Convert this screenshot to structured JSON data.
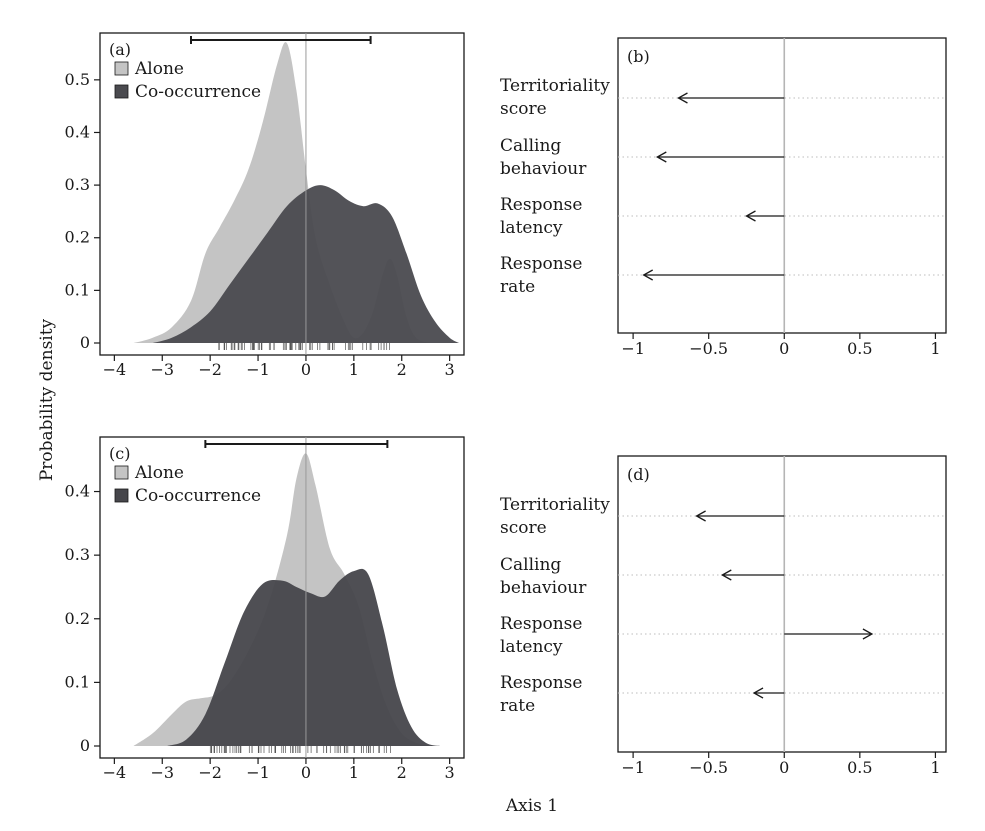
{
  "figure": {
    "ylabel": "Probability density",
    "xlabel": "Axis 1"
  },
  "chart_data": [
    {
      "panel": "(a)",
      "type": "area",
      "xlim": [
        -4.3,
        3.3
      ],
      "ylim": [
        0,
        0.57
      ],
      "xticks": [
        -4,
        -3,
        -2,
        -1,
        0,
        1,
        2,
        3
      ],
      "yticks": [
        0,
        0.1,
        0.2,
        0.3,
        0.4,
        0.5
      ],
      "ytick_labels": [
        "0",
        "0.1",
        "0.2",
        "0.3",
        "0.4",
        "0.5"
      ],
      "legend": [
        "Alone",
        "Co-occurrence"
      ],
      "legend_position": "top-left",
      "interval": [
        -2.4,
        1.35
      ],
      "series": [
        {
          "name": "Alone",
          "color": "#c4c4c4",
          "x": [
            -3.6,
            -3.2,
            -2.8,
            -2.4,
            -2.1,
            -1.8,
            -1.5,
            -1.2,
            -0.9,
            -0.6,
            -0.4,
            -0.2,
            0.0,
            0.2,
            0.5,
            0.8,
            1.0,
            1.2,
            1.4,
            1.6,
            1.75,
            1.9,
            2.1,
            2.3,
            2.6
          ],
          "y": [
            0.0,
            0.01,
            0.03,
            0.08,
            0.17,
            0.22,
            0.27,
            0.33,
            0.42,
            0.53,
            0.57,
            0.48,
            0.33,
            0.2,
            0.11,
            0.04,
            0.01,
            0.02,
            0.06,
            0.13,
            0.16,
            0.13,
            0.05,
            0.01,
            0.0
          ]
        },
        {
          "name": "Co-occurrence",
          "color": "#4a4a4f",
          "x": [
            -3.2,
            -2.8,
            -2.4,
            -2.0,
            -1.6,
            -1.2,
            -0.8,
            -0.4,
            0.0,
            0.3,
            0.6,
            0.9,
            1.2,
            1.5,
            1.8,
            2.1,
            2.4,
            2.7,
            3.0,
            3.2
          ],
          "y": [
            0.0,
            0.01,
            0.03,
            0.06,
            0.11,
            0.16,
            0.21,
            0.26,
            0.29,
            0.3,
            0.29,
            0.27,
            0.26,
            0.265,
            0.24,
            0.17,
            0.09,
            0.04,
            0.01,
            0.0
          ]
        }
      ]
    },
    {
      "panel": "(b)",
      "type": "arrows",
      "xlim": [
        -1.1,
        1.07
      ],
      "xticks": [
        -1,
        -0.5,
        0,
        0.5,
        1
      ],
      "xtick_labels": [
        "−1",
        "−0.5",
        "0",
        "0.5",
        "1"
      ],
      "variables": [
        "Territoriality score",
        "Calling behaviour",
        "Response latency",
        "Response rate"
      ],
      "variable_lines": [
        [
          "Territoriality",
          "score"
        ],
        [
          "Calling",
          "behaviour"
        ],
        [
          "Response",
          "latency"
        ],
        [
          "Response",
          "rate"
        ]
      ],
      "values": [
        -0.7,
        -0.84,
        -0.25,
        -0.93
      ]
    },
    {
      "panel": "(c)",
      "type": "area",
      "xlim": [
        -4.3,
        3.3
      ],
      "ylim": [
        0,
        0.47
      ],
      "xticks": [
        -4,
        -3,
        -2,
        -1,
        0,
        1,
        2,
        3
      ],
      "yticks": [
        0,
        0.1,
        0.2,
        0.3,
        0.4
      ],
      "ytick_labels": [
        "0",
        "0.1",
        "0.2",
        "0.3",
        "0.4"
      ],
      "legend": [
        "Alone",
        "Co-occurrence"
      ],
      "legend_position": "top-left",
      "interval": [
        -2.1,
        1.7
      ],
      "series": [
        {
          "name": "Alone",
          "color": "#c4c4c4",
          "x": [
            -3.6,
            -3.2,
            -2.8,
            -2.5,
            -2.2,
            -1.9,
            -1.6,
            -1.2,
            -0.8,
            -0.4,
            -0.2,
            0.0,
            0.2,
            0.5,
            0.8,
            1.1,
            1.4,
            1.7,
            2.0,
            2.3,
            2.6
          ],
          "y": [
            0.0,
            0.02,
            0.05,
            0.07,
            0.075,
            0.08,
            0.1,
            0.15,
            0.22,
            0.33,
            0.42,
            0.46,
            0.41,
            0.31,
            0.27,
            0.22,
            0.13,
            0.06,
            0.02,
            0.005,
            0.0
          ]
        },
        {
          "name": "Co-occurrence",
          "color": "#46464b",
          "x": [
            -2.9,
            -2.5,
            -2.1,
            -1.7,
            -1.3,
            -0.9,
            -0.5,
            -0.2,
            0.1,
            0.4,
            0.7,
            1.0,
            1.3,
            1.6,
            1.9,
            2.2,
            2.5,
            2.8
          ],
          "y": [
            0.0,
            0.01,
            0.05,
            0.13,
            0.21,
            0.255,
            0.26,
            0.25,
            0.24,
            0.235,
            0.26,
            0.275,
            0.27,
            0.19,
            0.09,
            0.03,
            0.005,
            0.0
          ]
        }
      ]
    },
    {
      "panel": "(d)",
      "type": "arrows",
      "xlim": [
        -1.1,
        1.07
      ],
      "xticks": [
        -1,
        -0.5,
        0,
        0.5,
        1
      ],
      "xtick_labels": [
        "−1",
        "−0.5",
        "0",
        "0.5",
        "1"
      ],
      "variables": [
        "Territoriality score",
        "Calling behaviour",
        "Response latency",
        "Response rate"
      ],
      "variable_lines": [
        [
          "Territoriality",
          "score"
        ],
        [
          "Calling",
          "behaviour"
        ],
        [
          "Response",
          "latency"
        ],
        [
          "Response",
          "rate"
        ]
      ],
      "values": [
        -0.58,
        -0.41,
        0.58,
        -0.2
      ]
    }
  ]
}
